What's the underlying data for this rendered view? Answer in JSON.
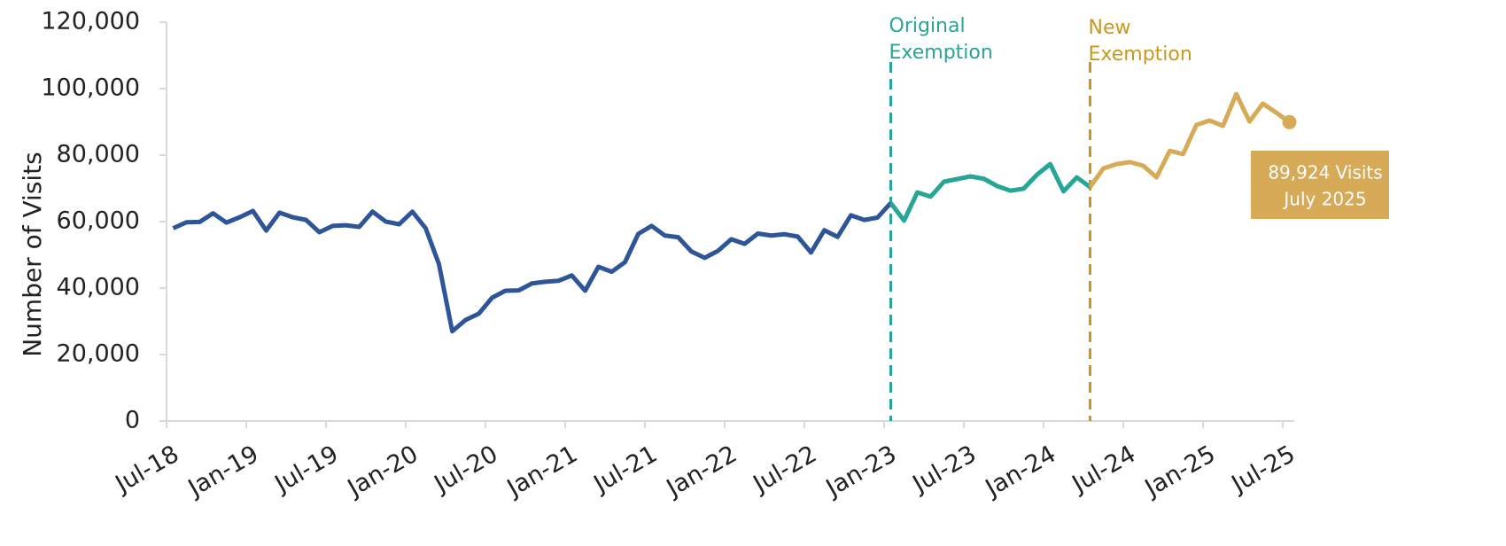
{
  "chart_data": {
    "type": "line",
    "y_label": "Number of Visits",
    "categories": [
      "Jul-18",
      null,
      null,
      null,
      null,
      null,
      "Jan-19",
      null,
      null,
      null,
      null,
      null,
      "Jul-19",
      null,
      null,
      null,
      null,
      null,
      "Jan-20",
      null,
      null,
      null,
      null,
      null,
      "Jul-20",
      null,
      null,
      null,
      null,
      null,
      "Jan-21",
      null,
      null,
      null,
      null,
      null,
      "Jul-21",
      null,
      null,
      null,
      null,
      null,
      "Jan-22",
      null,
      null,
      null,
      null,
      null,
      "Jul-22",
      null,
      null,
      null,
      null,
      null,
      "Jan-23",
      null,
      null,
      null,
      null,
      null,
      "Jul-23",
      null,
      null,
      null,
      null,
      null,
      "Jan-24",
      null,
      null,
      null,
      null,
      null,
      "Jul-24",
      null,
      null,
      null,
      null,
      null,
      "Jan-25",
      null,
      null,
      null,
      null,
      null,
      "Jul-25"
    ],
    "series": [
      {
        "color": "#2e5597",
        "values": [
          58000,
          59800,
          59900,
          62500,
          59700,
          61300,
          63200,
          57300,
          62700,
          61300,
          60500,
          56800,
          58700,
          58900,
          58400,
          63000,
          60000,
          59200,
          63000,
          58000,
          47200,
          27000,
          30400,
          32300,
          37100,
          39200,
          39300,
          41400,
          41900,
          42200,
          43800,
          39200,
          46400,
          44900,
          47800,
          56300,
          58700,
          55800,
          55300,
          51000,
          49100,
          51200,
          54700,
          53300,
          56400,
          55800,
          56200,
          55500,
          50700,
          57400,
          55400,
          61900,
          60500,
          61200,
          65600,
          null,
          null,
          null,
          null,
          null,
          null,
          null,
          null,
          null,
          null,
          null,
          null,
          null,
          null,
          null,
          null,
          null,
          null,
          null,
          null,
          null,
          null,
          null,
          null,
          null,
          null,
          null,
          null,
          null,
          null
        ]
      },
      {
        "color": "#27a596",
        "values": [
          null,
          null,
          null,
          null,
          null,
          null,
          null,
          null,
          null,
          null,
          null,
          null,
          null,
          null,
          null,
          null,
          null,
          null,
          null,
          null,
          null,
          null,
          null,
          null,
          null,
          null,
          null,
          null,
          null,
          null,
          null,
          null,
          null,
          null,
          null,
          null,
          null,
          null,
          null,
          null,
          null,
          null,
          null,
          null,
          null,
          null,
          null,
          null,
          null,
          null,
          null,
          null,
          null,
          null,
          65600,
          60300,
          68800,
          67500,
          72000,
          72800,
          73600,
          72900,
          70700,
          69300,
          69900,
          74100,
          77300,
          69100,
          73300,
          70400,
          null,
          null,
          null,
          null,
          null,
          null,
          null,
          null,
          null,
          null,
          null,
          null,
          null,
          null,
          null
        ]
      },
      {
        "color": "#d6aa57",
        "values": [
          null,
          null,
          null,
          null,
          null,
          null,
          null,
          null,
          null,
          null,
          null,
          null,
          null,
          null,
          null,
          null,
          null,
          null,
          null,
          null,
          null,
          null,
          null,
          null,
          null,
          null,
          null,
          null,
          null,
          null,
          null,
          null,
          null,
          null,
          null,
          null,
          null,
          null,
          null,
          null,
          null,
          null,
          null,
          null,
          null,
          null,
          null,
          null,
          null,
          null,
          null,
          null,
          null,
          null,
          null,
          null,
          null,
          null,
          null,
          null,
          null,
          null,
          null,
          null,
          null,
          null,
          null,
          null,
          null,
          70400,
          76000,
          77300,
          77900,
          76800,
          73300,
          81300,
          80300,
          89100,
          90400,
          88800,
          98400,
          90100,
          95500,
          92800,
          89924
        ]
      }
    ],
    "ylim": [
      0,
      120000
    ],
    "yticks": [
      0,
      {
        "value": 20000,
        "label": "20,000"
      },
      {
        "value": 40000,
        "label": "40,000"
      },
      {
        "value": 60000,
        "label": "60,000"
      },
      {
        "value": 80000,
        "label": "80,000"
      },
      {
        "value": 100000,
        "label": "100,000"
      },
      {
        "value": 120000,
        "label": "120,000"
      }
    ],
    "annotations": [
      {
        "lines": [
          "Original",
          "Exemption"
        ],
        "color": "#27a596"
      },
      {
        "lines": [
          "New",
          "Exemption"
        ],
        "color": "#c9981f"
      }
    ],
    "callout": {
      "lines": [
        "89,924 Visits",
        "July 2025"
      ],
      "color": "#d6aa57"
    }
  }
}
